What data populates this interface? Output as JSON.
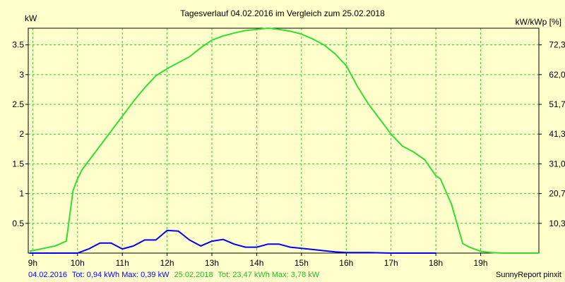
{
  "chart_data": {
    "type": "line",
    "title": "Tagesverlauf 04.02.2016 im Vergleich zum 25.02.2018",
    "ylabel_left": "kW",
    "ylabel_right": "kW/kWp [%]",
    "x_range": [
      8.9,
      20.3
    ],
    "x_ticks": [
      {
        "x": 9,
        "label": "9h"
      },
      {
        "x": 10,
        "label": "10h"
      },
      {
        "x": 11,
        "label": "11h"
      },
      {
        "x": 12,
        "label": "12h"
      },
      {
        "x": 13,
        "label": "13h"
      },
      {
        "x": 14,
        "label": "14h"
      },
      {
        "x": 15,
        "label": "15h"
      },
      {
        "x": 16,
        "label": "16h"
      },
      {
        "x": 17,
        "label": "17h"
      },
      {
        "x": 18,
        "label": "18h"
      },
      {
        "x": 19,
        "label": "19h"
      }
    ],
    "y_range": [
      0,
      3.78
    ],
    "y_ticks_left": [
      {
        "y": 0.5,
        "label": "0.5"
      },
      {
        "y": 1,
        "label": "1"
      },
      {
        "y": 1.5,
        "label": "1.5"
      },
      {
        "y": 2,
        "label": "2"
      },
      {
        "y": 2.5,
        "label": "2.5"
      },
      {
        "y": 3,
        "label": "3"
      },
      {
        "y": 3.5,
        "label": "3.5"
      }
    ],
    "y_ticks_right": [
      {
        "y": 0.5,
        "label": "10,3"
      },
      {
        "y": 1,
        "label": "20,7"
      },
      {
        "y": 1.5,
        "label": "31,0"
      },
      {
        "y": 2,
        "label": "41,3"
      },
      {
        "y": 2.5,
        "label": "51,7"
      },
      {
        "y": 3,
        "label": "62,0"
      },
      {
        "y": 3.5,
        "label": "72,3"
      }
    ],
    "grid": true,
    "colors": {
      "background": "#ffffcc",
      "grid": "#33cc33",
      "series_2016": "#0000ff",
      "series_2018": "#33dd33"
    },
    "series": [
      {
        "label": "04.02.2016",
        "color": "#0000ff",
        "points": [
          [
            8.93,
            0
          ],
          [
            9.5,
            0
          ],
          [
            10.0,
            0
          ],
          [
            10.25,
            0.07
          ],
          [
            10.5,
            0.17
          ],
          [
            10.75,
            0.17
          ],
          [
            11.0,
            0.07
          ],
          [
            11.25,
            0.12
          ],
          [
            11.5,
            0.22
          ],
          [
            11.75,
            0.22
          ],
          [
            12.0,
            0.38
          ],
          [
            12.25,
            0.37
          ],
          [
            12.5,
            0.22
          ],
          [
            12.75,
            0.12
          ],
          [
            13.0,
            0.2
          ],
          [
            13.25,
            0.23
          ],
          [
            13.5,
            0.15
          ],
          [
            13.75,
            0.1
          ],
          [
            14.0,
            0.1
          ],
          [
            14.25,
            0.15
          ],
          [
            14.5,
            0.15
          ],
          [
            14.75,
            0.1
          ],
          [
            15.0,
            0.08
          ],
          [
            15.25,
            0.06
          ],
          [
            15.5,
            0.04
          ],
          [
            15.75,
            0.02
          ],
          [
            16.0,
            0.01
          ],
          [
            16.5,
            0.01
          ],
          [
            17.0,
            0
          ],
          [
            17.5,
            0
          ],
          [
            18.0,
            0
          ]
        ]
      },
      {
        "label": "25.02.2018",
        "color": "#33dd33",
        "points": [
          [
            8.93,
            0.03
          ],
          [
            9.25,
            0.08
          ],
          [
            9.5,
            0.12
          ],
          [
            9.75,
            0.2
          ],
          [
            9.9,
            1.05
          ],
          [
            10.0,
            1.25
          ],
          [
            10.1,
            1.4
          ],
          [
            10.25,
            1.55
          ],
          [
            10.5,
            1.8
          ],
          [
            10.75,
            2.05
          ],
          [
            11.0,
            2.3
          ],
          [
            11.25,
            2.55
          ],
          [
            11.5,
            2.78
          ],
          [
            11.75,
            2.98
          ],
          [
            12.0,
            3.1
          ],
          [
            12.25,
            3.2
          ],
          [
            12.5,
            3.3
          ],
          [
            12.75,
            3.45
          ],
          [
            13.0,
            3.58
          ],
          [
            13.25,
            3.65
          ],
          [
            13.5,
            3.7
          ],
          [
            13.75,
            3.74
          ],
          [
            14.0,
            3.76
          ],
          [
            14.25,
            3.78
          ],
          [
            14.5,
            3.76
          ],
          [
            14.75,
            3.73
          ],
          [
            15.0,
            3.68
          ],
          [
            15.25,
            3.6
          ],
          [
            15.5,
            3.5
          ],
          [
            15.75,
            3.35
          ],
          [
            16.0,
            3.15
          ],
          [
            16.25,
            2.8
          ],
          [
            16.5,
            2.5
          ],
          [
            16.75,
            2.25
          ],
          [
            17.0,
            2.0
          ],
          [
            17.25,
            1.8
          ],
          [
            17.5,
            1.7
          ],
          [
            17.75,
            1.57
          ],
          [
            18.0,
            1.3
          ],
          [
            18.1,
            1.25
          ],
          [
            18.35,
            0.82
          ],
          [
            18.6,
            0.16
          ],
          [
            18.75,
            0.1
          ],
          [
            19.0,
            0.03
          ],
          [
            19.25,
            0.01
          ],
          [
            19.5,
            0
          ],
          [
            20.3,
            0
          ]
        ]
      }
    ],
    "footer": {
      "s1_date": "04.02.2016",
      "s1_stats": "Tot: 0,94 kWh Max: 0,39 kW",
      "s2_date": "25.02.2018",
      "s2_stats": "Tot: 23,47 kWh Max: 3,78 kW",
      "credit": "SunnyReport pinxit"
    }
  }
}
